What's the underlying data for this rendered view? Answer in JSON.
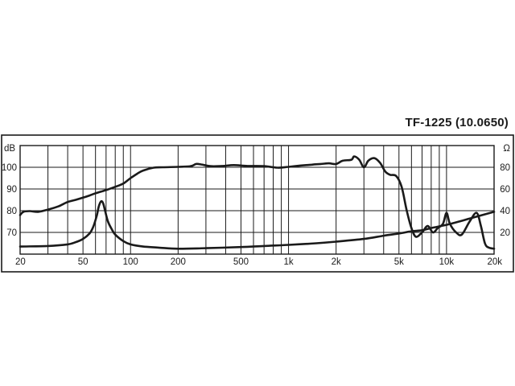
{
  "chart_data": {
    "type": "line",
    "title": "TF-1225 (10.0650)",
    "x_scale": "log",
    "xlim": [
      20,
      20000
    ],
    "x_tick_labels": [
      {
        "value": 20,
        "label": "20"
      },
      {
        "value": 50,
        "label": "50"
      },
      {
        "value": 100,
        "label": "100"
      },
      {
        "value": 200,
        "label": "200"
      },
      {
        "value": 500,
        "label": "500"
      },
      {
        "value": 1000,
        "label": "1k"
      },
      {
        "value": 2000,
        "label": "2k"
      },
      {
        "value": 5000,
        "label": "5k"
      },
      {
        "value": 10000,
        "label": "10k"
      },
      {
        "value": 20000,
        "label": "20k"
      }
    ],
    "x_gridlines": [
      20,
      30,
      40,
      50,
      60,
      70,
      80,
      90,
      100,
      200,
      300,
      400,
      500,
      600,
      700,
      800,
      900,
      1000,
      2000,
      3000,
      4000,
      5000,
      6000,
      7000,
      8000,
      9000,
      10000,
      20000
    ],
    "y_left": {
      "unit": "dB",
      "ylim": [
        60,
        110
      ],
      "ticks": [
        70,
        80,
        90,
        100
      ],
      "tick_labels": [
        "70",
        "80",
        "90",
        "100"
      ]
    },
    "y_right": {
      "unit": "Ω",
      "ylim": [
        0,
        100
      ],
      "ticks": [
        20,
        40,
        60,
        80
      ],
      "tick_labels": [
        "20",
        "40",
        "60",
        "80"
      ]
    },
    "grid": true,
    "legend": "none",
    "series": [
      {
        "axis": "left",
        "color": "#1a1a1a",
        "points": [
          [
            20,
            78
          ],
          [
            21,
            79.5
          ],
          [
            23,
            79.8
          ],
          [
            26,
            79.5
          ],
          [
            30,
            80.5
          ],
          [
            35,
            82
          ],
          [
            40,
            84
          ],
          [
            45,
            85
          ],
          [
            50,
            86
          ],
          [
            55,
            87
          ],
          [
            60,
            88
          ],
          [
            70,
            89.5
          ],
          [
            80,
            91
          ],
          [
            90,
            92.5
          ],
          [
            100,
            95
          ],
          [
            110,
            97
          ],
          [
            120,
            98.5
          ],
          [
            140,
            99.8
          ],
          [
            160,
            100
          ],
          [
            200,
            100.2
          ],
          [
            240,
            100.5
          ],
          [
            260,
            101.5
          ],
          [
            280,
            101.3
          ],
          [
            320,
            100.5
          ],
          [
            380,
            100.6
          ],
          [
            450,
            101
          ],
          [
            550,
            100.6
          ],
          [
            700,
            100.5
          ],
          [
            850,
            99.8
          ],
          [
            1000,
            100.2
          ],
          [
            1200,
            100.8
          ],
          [
            1400,
            101.2
          ],
          [
            1600,
            101.5
          ],
          [
            1800,
            101.8
          ],
          [
            2000,
            101.5
          ],
          [
            2200,
            103
          ],
          [
            2500,
            103.5
          ],
          [
            2600,
            105
          ],
          [
            2800,
            103.5
          ],
          [
            3000,
            100
          ],
          [
            3200,
            103
          ],
          [
            3500,
            104.2
          ],
          [
            3800,
            102
          ],
          [
            4100,
            98
          ],
          [
            4400,
            96.5
          ],
          [
            4800,
            96
          ],
          [
            5200,
            91
          ],
          [
            5600,
            80
          ],
          [
            6000,
            72
          ],
          [
            6400,
            68
          ],
          [
            7000,
            70
          ],
          [
            7600,
            73
          ],
          [
            8200,
            70
          ],
          [
            8800,
            72
          ],
          [
            9500,
            74
          ],
          [
            10000,
            79
          ],
          [
            10500,
            74
          ],
          [
            11500,
            70
          ],
          [
            12500,
            69
          ],
          [
            14000,
            75
          ],
          [
            15500,
            79
          ],
          [
            16500,
            73
          ],
          [
            17500,
            65
          ],
          [
            18500,
            63
          ],
          [
            20000,
            62.5
          ]
        ]
      },
      {
        "axis": "right",
        "color": "#1a1a1a",
        "points": [
          [
            20,
            7
          ],
          [
            30,
            7.5
          ],
          [
            40,
            9
          ],
          [
            45,
            11
          ],
          [
            50,
            14
          ],
          [
            55,
            19
          ],
          [
            58,
            25
          ],
          [
            61,
            35
          ],
          [
            63,
            44
          ],
          [
            65,
            48.5
          ],
          [
            67,
            47
          ],
          [
            69,
            40
          ],
          [
            72,
            30
          ],
          [
            76,
            23
          ],
          [
            80,
            18
          ],
          [
            90,
            12
          ],
          [
            100,
            9
          ],
          [
            120,
            7
          ],
          [
            150,
            6
          ],
          [
            200,
            5
          ],
          [
            300,
            5.5
          ],
          [
            500,
            6.5
          ],
          [
            700,
            7.5
          ],
          [
            1000,
            8.5
          ],
          [
            1500,
            10
          ],
          [
            2000,
            11.5
          ],
          [
            3000,
            14
          ],
          [
            4000,
            17
          ],
          [
            5000,
            19
          ],
          [
            6000,
            21
          ],
          [
            7000,
            22
          ],
          [
            8000,
            24
          ],
          [
            10000,
            27
          ],
          [
            12000,
            30
          ],
          [
            15000,
            34
          ],
          [
            20000,
            39
          ]
        ]
      }
    ]
  }
}
